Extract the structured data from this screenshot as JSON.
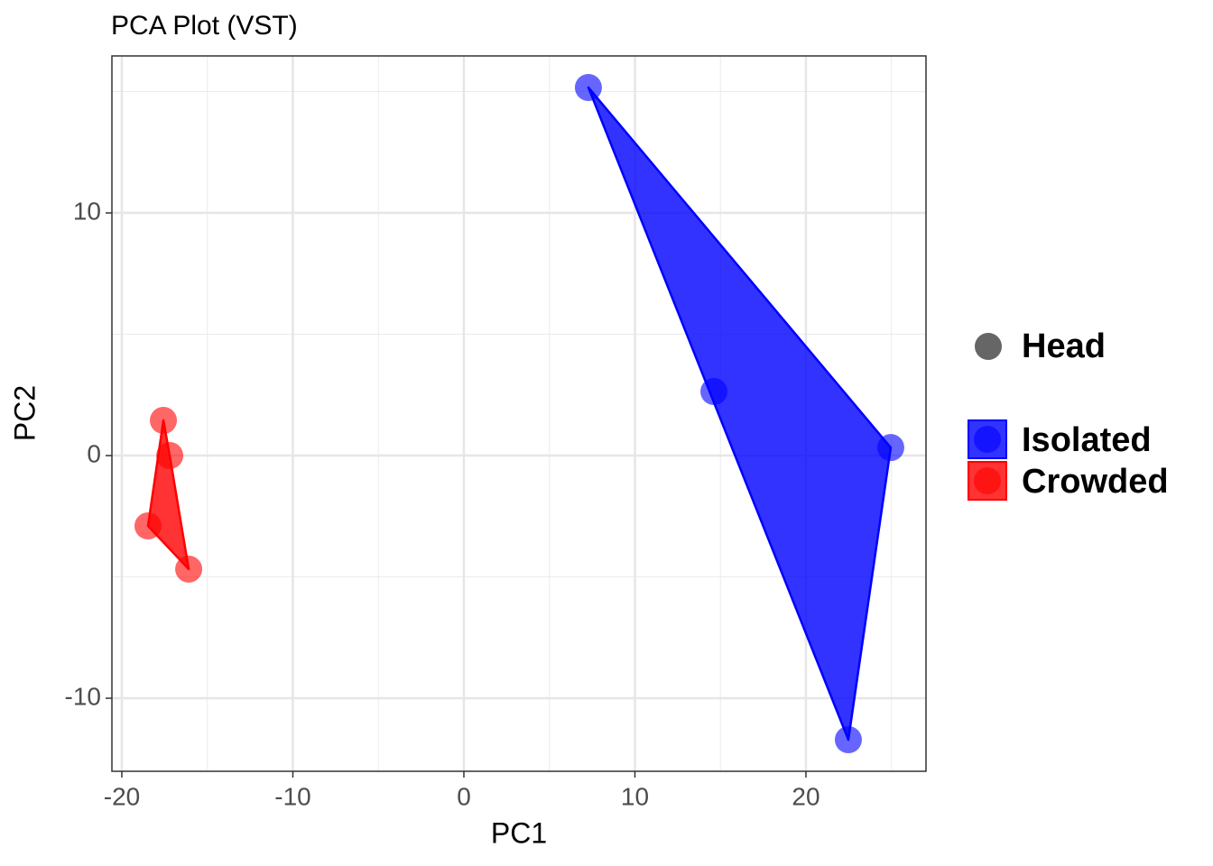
{
  "chart_data": {
    "type": "scatter",
    "title": "PCA Plot (VST)",
    "x_label": "PC1",
    "y_label": "PC2",
    "xlim": [
      -20.58,
      27.02
    ],
    "ylim": [
      -13.01,
      16.47
    ],
    "xticks": [
      -20,
      -10,
      0,
      10,
      20
    ],
    "yticks": [
      -10,
      0,
      10
    ],
    "xminor": [
      -15,
      -5,
      5,
      15,
      25
    ],
    "yminor": [
      -5,
      5,
      15
    ],
    "grid": true,
    "hull": true,
    "shape_legend": "Head",
    "shape_color": "#666666",
    "series": [
      {
        "name": "Isolated",
        "color": "#0000ff",
        "x": [
          7.28,
          14.62,
          24.96,
          22.48
        ],
        "values": [
          15.17,
          2.64,
          0.33,
          -11.71
        ]
      },
      {
        "name": "Crowded",
        "color": "#ff0000",
        "x": [
          -17.57,
          -17.2,
          -18.47,
          -16.09
        ],
        "values": [
          1.45,
          0,
          -2.9,
          -4.68
        ]
      }
    ]
  }
}
